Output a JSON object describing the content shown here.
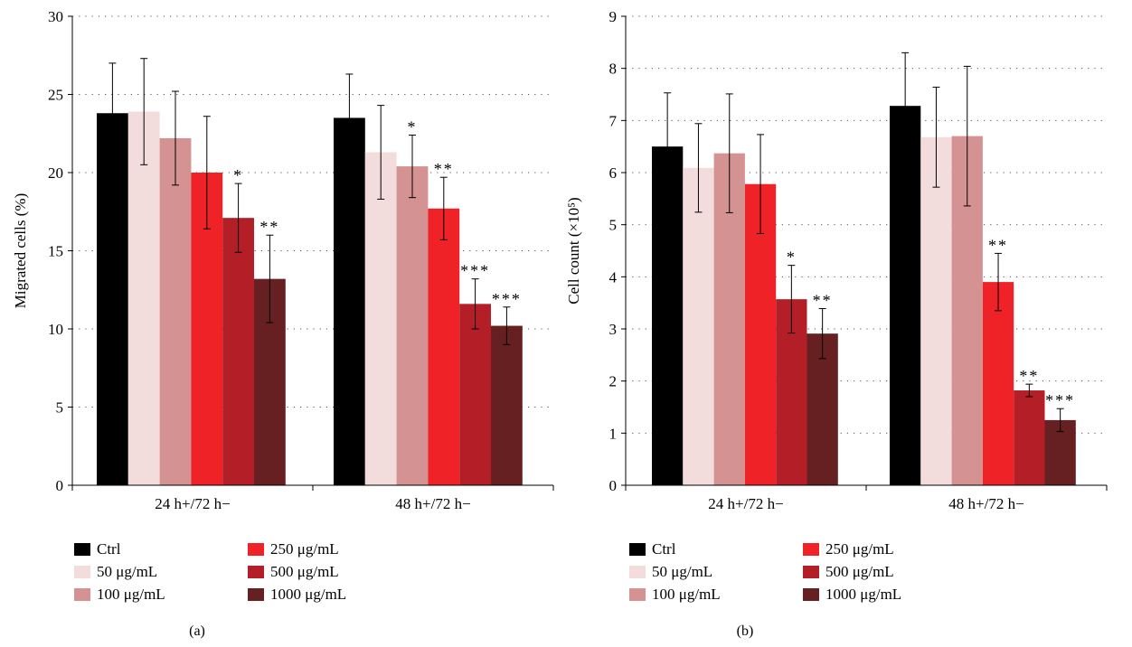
{
  "legend": {
    "items": [
      {
        "label": "Ctrl",
        "color": "#000000"
      },
      {
        "label": "50 μg/mL",
        "color": "#f2dcdc"
      },
      {
        "label": "100 μg/mL",
        "color": "#d49392"
      },
      {
        "label": "250 μg/mL",
        "color": "#ee2227"
      },
      {
        "label": "500 μg/mL",
        "color": "#b41f27"
      },
      {
        "label": "1000 μg/mL",
        "color": "#662022"
      }
    ]
  },
  "chart_data": [
    {
      "type": "bar",
      "caption": "(a)",
      "ylabel": "Migrated cells (%)",
      "ylim": [
        0,
        30
      ],
      "yticks": [
        0,
        5,
        10,
        15,
        20,
        25,
        30
      ],
      "grid": true,
      "categories": [
        "24 h+/72 h−",
        "48 h+/72 h−"
      ],
      "series": [
        {
          "name": "Ctrl",
          "values": [
            23.8,
            23.5
          ],
          "errors": [
            3.2,
            2.8
          ],
          "significance": [
            "",
            ""
          ]
        },
        {
          "name": "50 μg/mL",
          "values": [
            23.9,
            21.3
          ],
          "errors": [
            3.4,
            3.0
          ],
          "significance": [
            "",
            ""
          ]
        },
        {
          "name": "100 μg/mL",
          "values": [
            22.2,
            20.4
          ],
          "errors": [
            3.0,
            2.0
          ],
          "significance": [
            "",
            "*"
          ]
        },
        {
          "name": "250 μg/mL",
          "values": [
            20.0,
            17.7
          ],
          "errors": [
            3.6,
            2.0
          ],
          "significance": [
            "",
            "**"
          ]
        },
        {
          "name": "500 μg/mL",
          "values": [
            17.1,
            11.6
          ],
          "errors": [
            2.2,
            1.6
          ],
          "significance": [
            "*",
            "***"
          ]
        },
        {
          "name": "1000 μg/mL",
          "values": [
            13.2,
            10.2
          ],
          "errors": [
            2.8,
            1.2
          ],
          "significance": [
            "**",
            "***"
          ]
        }
      ]
    },
    {
      "type": "bar",
      "caption": "(b)",
      "ylabel": "Cell count (×10⁵)",
      "ylim": [
        0,
        9
      ],
      "yticks": [
        0,
        1,
        2,
        3,
        4,
        5,
        6,
        7,
        8,
        9
      ],
      "grid": true,
      "categories": [
        "24 h+/72 h−",
        "48 h+/72 h−"
      ],
      "series": [
        {
          "name": "Ctrl",
          "values": [
            6.5,
            7.28
          ],
          "errors": [
            1.03,
            1.02
          ],
          "significance": [
            "",
            ""
          ]
        },
        {
          "name": "50 μg/mL",
          "values": [
            6.09,
            6.68
          ],
          "errors": [
            0.85,
            0.96
          ],
          "significance": [
            "",
            ""
          ]
        },
        {
          "name": "100 μg/mL",
          "values": [
            6.37,
            6.7
          ],
          "errors": [
            1.14,
            1.34
          ],
          "significance": [
            "",
            ""
          ]
        },
        {
          "name": "250 μg/mL",
          "values": [
            5.78,
            3.9
          ],
          "errors": [
            0.95,
            0.55
          ],
          "significance": [
            "",
            "**"
          ]
        },
        {
          "name": "500 μg/mL",
          "values": [
            3.57,
            1.82
          ],
          "errors": [
            0.65,
            0.12
          ],
          "significance": [
            "*",
            "**"
          ]
        },
        {
          "name": "1000 μg/mL",
          "values": [
            2.91,
            1.25
          ],
          "errors": [
            0.48,
            0.22
          ],
          "significance": [
            "**",
            "***"
          ]
        }
      ]
    }
  ]
}
